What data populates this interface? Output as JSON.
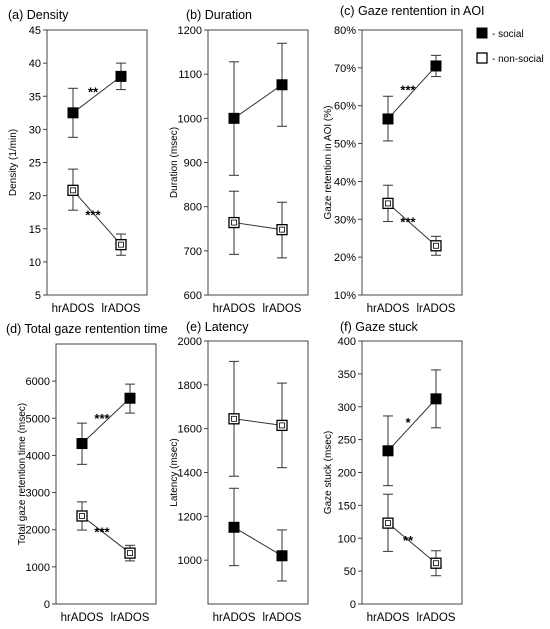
{
  "legend": {
    "position": "top-right",
    "items": [
      {
        "label": "- social",
        "marker": "filled-square"
      },
      {
        "label": "- non-social",
        "marker": "open-square"
      }
    ]
  },
  "chart_data": [
    {
      "type": "line",
      "title": "(a) Density",
      "xlabel": "",
      "ylabel": "Density (1/min)",
      "categories": [
        "hrADOS",
        "lrADOS"
      ],
      "ylim": [
        5,
        45
      ],
      "yticks": [
        5,
        10,
        15,
        20,
        25,
        30,
        35,
        40,
        45
      ],
      "ytick_labels": [
        "5",
        "10",
        "15",
        "20",
        "25",
        "30",
        "35",
        "40",
        "45"
      ],
      "series": [
        {
          "name": "social",
          "marker": "filled",
          "values": [
            32.5,
            38.0
          ],
          "err_low": [
            28.8,
            36.0
          ],
          "err_high": [
            36.2,
            40.0
          ]
        },
        {
          "name": "non-social",
          "marker": "open",
          "values": [
            20.8,
            12.6
          ],
          "err_low": [
            17.8,
            11.0
          ],
          "err_high": [
            24.0,
            14.2
          ]
        }
      ],
      "annotations": [
        {
          "text": "**",
          "between": "social"
        },
        {
          "text": "***",
          "between": "non-social"
        }
      ]
    },
    {
      "type": "line",
      "title": "(b) Duration",
      "xlabel": "",
      "ylabel": "Duration (msec)",
      "categories": [
        "hrADOS",
        "lrADOS"
      ],
      "ylim": [
        600,
        1200
      ],
      "yticks": [
        600,
        700,
        800,
        900,
        1000,
        1100,
        1200
      ],
      "ytick_labels": [
        "600",
        "700",
        "800",
        "900",
        "1000",
        "1100",
        "1200"
      ],
      "series": [
        {
          "name": "social",
          "marker": "filled",
          "values": [
            1000,
            1076
          ],
          "err_low": [
            871,
            982
          ],
          "err_high": [
            1128,
            1170
          ]
        },
        {
          "name": "non-social",
          "marker": "open",
          "values": [
            764,
            748
          ],
          "err_low": [
            692,
            684
          ],
          "err_high": [
            835,
            810
          ]
        }
      ],
      "annotations": []
    },
    {
      "type": "line",
      "title": "(c) Gaze rentention in AOI",
      "xlabel": "",
      "ylabel": "Gaze retention in AOI (%)",
      "categories": [
        "hrADOS",
        "lrADOS"
      ],
      "ylim": [
        10,
        80
      ],
      "yticks": [
        10,
        20,
        30,
        40,
        50,
        60,
        70,
        80
      ],
      "ytick_labels": [
        "10%",
        "20%",
        "30%",
        "40%",
        "50%",
        "60%",
        "70%",
        "80%"
      ],
      "series": [
        {
          "name": "social",
          "marker": "filled",
          "values": [
            56.5,
            70.5
          ],
          "err_low": [
            50.7,
            67.7
          ],
          "err_high": [
            62.5,
            73.3
          ]
        },
        {
          "name": "non-social",
          "marker": "open",
          "values": [
            34.2,
            23.0
          ],
          "err_low": [
            29.4,
            20.5
          ],
          "err_high": [
            39.0,
            25.5
          ]
        }
      ],
      "annotations": [
        {
          "text": "***",
          "between": "social"
        },
        {
          "text": "***",
          "between": "non-social"
        }
      ]
    },
    {
      "type": "line",
      "title": "(d) Total gaze rentention time",
      "xlabel": "",
      "ylabel": "Total gaze retention time (msec)",
      "categories": [
        "hrADOS",
        "lrADOS"
      ],
      "ylim": [
        0,
        7000
      ],
      "yticks": [
        0,
        1000,
        2000,
        3000,
        4000,
        5000,
        6000
      ],
      "ytick_labels": [
        "0",
        "1000",
        "2000",
        "3000",
        "4000",
        "5000",
        "6000"
      ],
      "series": [
        {
          "name": "social",
          "marker": "filled",
          "values": [
            4320,
            5540
          ],
          "err_low": [
            3760,
            5140
          ],
          "err_high": [
            4870,
            5920
          ]
        },
        {
          "name": "non-social",
          "marker": "open",
          "values": [
            2370,
            1370
          ],
          "err_low": [
            1990,
            1160
          ],
          "err_high": [
            2750,
            1580
          ]
        }
      ],
      "annotations": [
        {
          "text": "***",
          "between": "social"
        },
        {
          "text": "***",
          "between": "non-social"
        }
      ]
    },
    {
      "type": "line",
      "title": "(e) Latency",
      "xlabel": "",
      "ylabel": "Latency (msec)",
      "categories": [
        "hrADOS",
        "lrADOS"
      ],
      "ylim": [
        800,
        2000
      ],
      "yticks": [
        1000,
        1200,
        1400,
        1600,
        1800,
        2000
      ],
      "ytick_labels": [
        "1000",
        "1200",
        "1400",
        "1600",
        "1800",
        "2000"
      ],
      "series": [
        {
          "name": "social",
          "marker": "filled",
          "values": [
            1150,
            1020
          ],
          "err_low": [
            975,
            905
          ],
          "err_high": [
            1328,
            1138
          ]
        },
        {
          "name": "non-social",
          "marker": "open",
          "values": [
            1645,
            1615
          ],
          "err_low": [
            1383,
            1422
          ],
          "err_high": [
            1907,
            1808
          ]
        }
      ],
      "annotations": []
    },
    {
      "type": "line",
      "title": "(f) Gaze stuck",
      "xlabel": "",
      "ylabel": "Gaze stuck (msec)",
      "categories": [
        "hrADOS",
        "lrADOS"
      ],
      "ylim": [
        0,
        400
      ],
      "yticks": [
        0,
        50,
        100,
        150,
        200,
        250,
        300,
        350,
        400
      ],
      "ytick_labels": [
        "0",
        "50",
        "100",
        "150",
        "200",
        "250",
        "300",
        "350",
        "400"
      ],
      "series": [
        {
          "name": "social",
          "marker": "filled",
          "values": [
            233,
            312
          ],
          "err_low": [
            180,
            268
          ],
          "err_high": [
            286,
            356
          ]
        },
        {
          "name": "non-social",
          "marker": "open",
          "values": [
            123,
            62
          ],
          "err_low": [
            80,
            43
          ],
          "err_high": [
            167,
            81
          ]
        }
      ],
      "annotations": [
        {
          "text": "*",
          "between": "social"
        },
        {
          "text": "**",
          "between": "non-social"
        }
      ]
    }
  ]
}
